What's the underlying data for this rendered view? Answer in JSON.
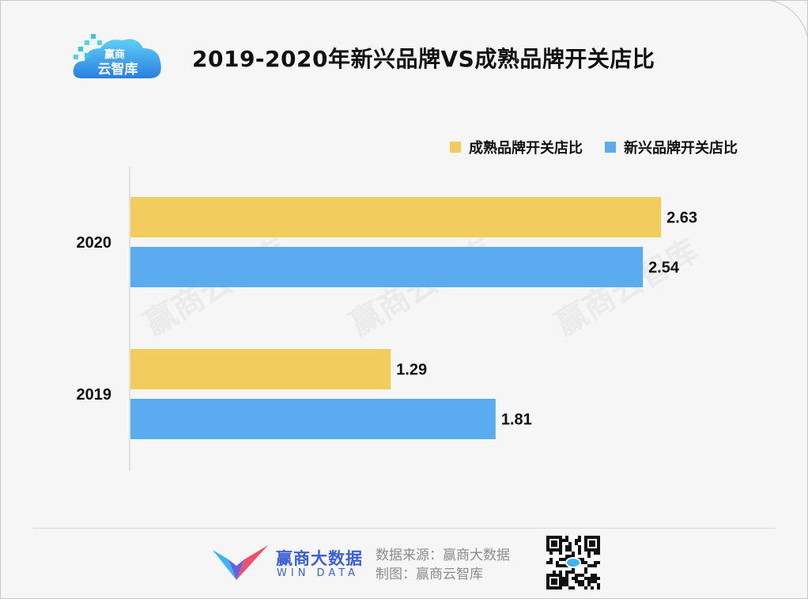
{
  "header": {
    "title": "2019-2020年新兴品牌VS成熟品牌开关店比",
    "logo_line1": "赢商",
    "logo_line2": "云智库"
  },
  "colors": {
    "mature": "#f2cd5d",
    "emerging": "#5aabf0",
    "axis": "#cccccc"
  },
  "chart_data": {
    "type": "bar",
    "orientation": "horizontal",
    "categories": [
      "2020",
      "2019"
    ],
    "series": [
      {
        "name": "成熟品牌开关店比",
        "values": [
          2.63,
          1.29
        ]
      },
      {
        "name": "新兴品牌开关店比",
        "values": [
          2.54,
          1.81
        ]
      }
    ],
    "xlim": [
      0,
      2.9
    ],
    "grid": false,
    "legend_position": "top-right"
  },
  "watermark": "赢商云智库",
  "footer": {
    "brand_cn": "赢商大数据",
    "brand_en": "WIN DATA",
    "source": "数据来源：赢商大数据",
    "credit": "制图：赢商云智库"
  }
}
